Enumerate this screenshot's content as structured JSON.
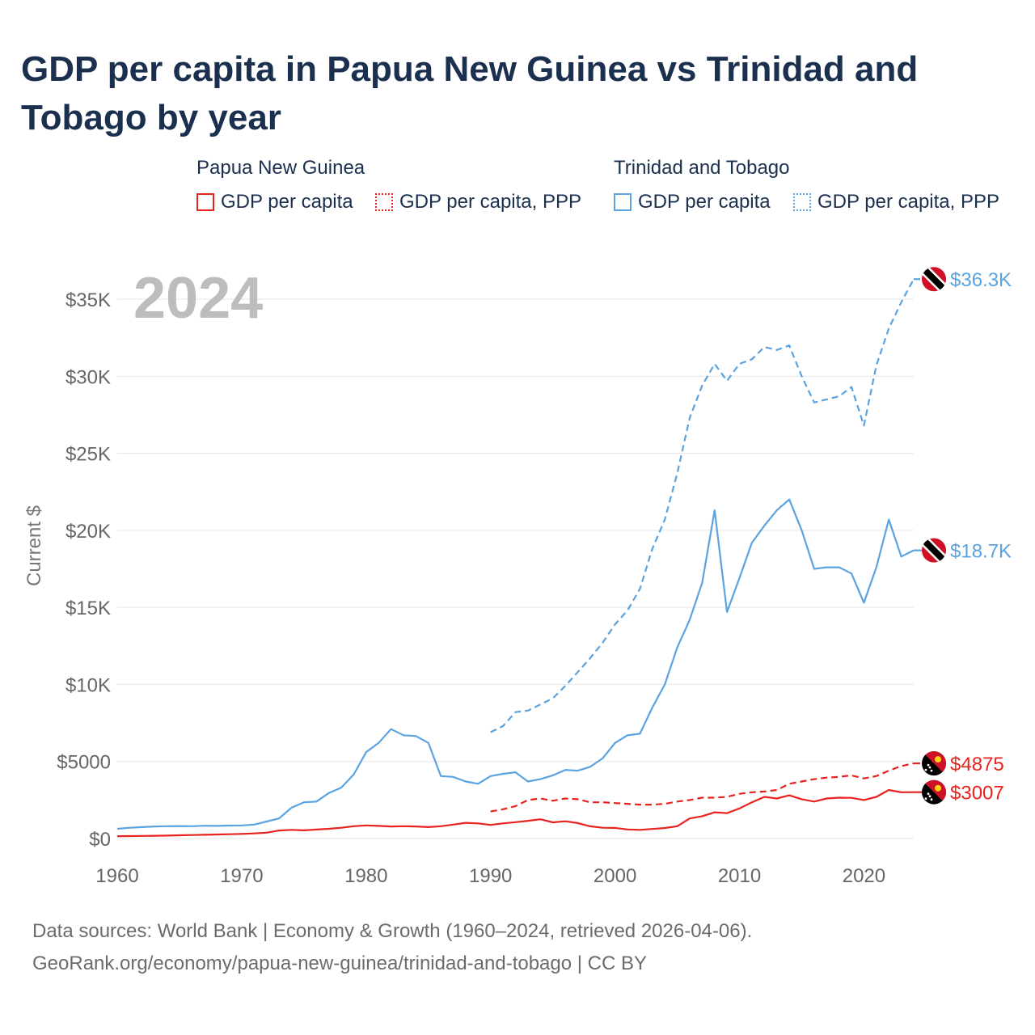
{
  "title": "GDP per capita in Papua New Guinea vs Trinidad and Tobago by year",
  "legend": {
    "groups": [
      {
        "country": "Papua New Guinea",
        "items": [
          "GDP per capita",
          "GDP per capita, PPP"
        ]
      },
      {
        "country": "Trinidad and Tobago",
        "items": [
          "GDP per capita",
          "GDP per capita, PPP"
        ]
      }
    ]
  },
  "footer": {
    "line1": "Data sources: World Bank | Economy & Growth (1960–2024, retrieved 2026-04-06).",
    "line2": "GeoRank.org/economy/papua-new-guinea/trinidad-and-tobago | CC BY"
  },
  "colors": {
    "png": "#e8231e",
    "tt": "#5aa2e0",
    "title": "#1b2f4e",
    "year": "#bdbdbd",
    "grid": "#e6e6e6",
    "axis_text": "#666666"
  },
  "chart_data": {
    "type": "line",
    "title": "GDP per capita in Papua New Guinea vs Trinidad and Tobago by year",
    "year_label": "2024",
    "ylabel": "Current $",
    "xlabel": "",
    "xlim": [
      1960,
      2024
    ],
    "ylim": [
      0,
      37000
    ],
    "xticks": [
      1960,
      1970,
      1980,
      1990,
      2000,
      2010,
      2020
    ],
    "yticks": [
      0,
      5000,
      10000,
      15000,
      20000,
      25000,
      30000,
      35000
    ],
    "ytick_labels": [
      "$0",
      "$5000",
      "$10K",
      "$15K",
      "$20K",
      "$25K",
      "$30K",
      "$35K"
    ],
    "grid": true,
    "series": [
      {
        "name": "Papua New Guinea — GDP per capita",
        "country": "Papua New Guinea",
        "color": "#e8231e",
        "dash": "solid",
        "end_label": "$3007",
        "flag": "papua-new-guinea",
        "points": [
          [
            1960,
            150
          ],
          [
            1961,
            160
          ],
          [
            1962,
            170
          ],
          [
            1963,
            180
          ],
          [
            1964,
            190
          ],
          [
            1965,
            210
          ],
          [
            1966,
            225
          ],
          [
            1967,
            240
          ],
          [
            1968,
            260
          ],
          [
            1969,
            280
          ],
          [
            1970,
            300
          ],
          [
            1971,
            330
          ],
          [
            1972,
            380
          ],
          [
            1973,
            520
          ],
          [
            1974,
            560
          ],
          [
            1975,
            530
          ],
          [
            1976,
            580
          ],
          [
            1977,
            630
          ],
          [
            1978,
            700
          ],
          [
            1979,
            800
          ],
          [
            1980,
            850
          ],
          [
            1981,
            820
          ],
          [
            1982,
            780
          ],
          [
            1983,
            800
          ],
          [
            1984,
            780
          ],
          [
            1985,
            740
          ],
          [
            1986,
            800
          ],
          [
            1987,
            900
          ],
          [
            1988,
            1020
          ],
          [
            1989,
            980
          ],
          [
            1990,
            880
          ],
          [
            1991,
            980
          ],
          [
            1992,
            1060
          ],
          [
            1993,
            1150
          ],
          [
            1994,
            1250
          ],
          [
            1995,
            1050
          ],
          [
            1996,
            1120
          ],
          [
            1997,
            1000
          ],
          [
            1998,
            790
          ],
          [
            1999,
            700
          ],
          [
            2000,
            690
          ],
          [
            2001,
            590
          ],
          [
            2002,
            560
          ],
          [
            2003,
            620
          ],
          [
            2004,
            680
          ],
          [
            2005,
            800
          ],
          [
            2006,
            1300
          ],
          [
            2007,
            1450
          ],
          [
            2008,
            1700
          ],
          [
            2009,
            1650
          ],
          [
            2010,
            1950
          ],
          [
            2011,
            2350
          ],
          [
            2012,
            2700
          ],
          [
            2013,
            2600
          ],
          [
            2014,
            2800
          ],
          [
            2015,
            2550
          ],
          [
            2016,
            2400
          ],
          [
            2017,
            2600
          ],
          [
            2018,
            2650
          ],
          [
            2019,
            2640
          ],
          [
            2020,
            2500
          ],
          [
            2021,
            2700
          ],
          [
            2022,
            3150
          ],
          [
            2023,
            3000
          ],
          [
            2024,
            3007
          ]
        ]
      },
      {
        "name": "Papua New Guinea — GDP per capita, PPP",
        "country": "Papua New Guinea",
        "color": "#e8231e",
        "dash": "dashed",
        "end_label": "$4875",
        "flag": "papua-new-guinea",
        "points": [
          [
            1990,
            1750
          ],
          [
            1991,
            1900
          ],
          [
            1992,
            2100
          ],
          [
            1993,
            2500
          ],
          [
            1994,
            2600
          ],
          [
            1995,
            2450
          ],
          [
            1996,
            2600
          ],
          [
            1997,
            2550
          ],
          [
            1998,
            2350
          ],
          [
            1999,
            2350
          ],
          [
            2000,
            2300
          ],
          [
            2001,
            2250
          ],
          [
            2002,
            2200
          ],
          [
            2003,
            2200
          ],
          [
            2004,
            2250
          ],
          [
            2005,
            2400
          ],
          [
            2006,
            2500
          ],
          [
            2007,
            2650
          ],
          [
            2008,
            2650
          ],
          [
            2009,
            2700
          ],
          [
            2010,
            2900
          ],
          [
            2011,
            3000
          ],
          [
            2012,
            3050
          ],
          [
            2013,
            3150
          ],
          [
            2014,
            3550
          ],
          [
            2015,
            3700
          ],
          [
            2016,
            3850
          ],
          [
            2017,
            3950
          ],
          [
            2018,
            4000
          ],
          [
            2019,
            4100
          ],
          [
            2020,
            3900
          ],
          [
            2021,
            4050
          ],
          [
            2022,
            4400
          ],
          [
            2023,
            4700
          ],
          [
            2024,
            4875
          ]
        ]
      },
      {
        "name": "Trinidad and Tobago — GDP per capita",
        "country": "Trinidad and Tobago",
        "color": "#5aa2e0",
        "dash": "solid",
        "end_label": "$18.7K",
        "flag": "trinidad-and-tobago",
        "points": [
          [
            1960,
            630
          ],
          [
            1961,
            700
          ],
          [
            1962,
            740
          ],
          [
            1963,
            780
          ],
          [
            1964,
            800
          ],
          [
            1965,
            810
          ],
          [
            1966,
            800
          ],
          [
            1967,
            830
          ],
          [
            1968,
            820
          ],
          [
            1969,
            840
          ],
          [
            1970,
            850
          ],
          [
            1971,
            900
          ],
          [
            1972,
            1100
          ],
          [
            1973,
            1300
          ],
          [
            1974,
            2000
          ],
          [
            1975,
            2350
          ],
          [
            1976,
            2400
          ],
          [
            1977,
            2950
          ],
          [
            1978,
            3300
          ],
          [
            1979,
            4150
          ],
          [
            1980,
            5600
          ],
          [
            1981,
            6200
          ],
          [
            1982,
            7100
          ],
          [
            1983,
            6700
          ],
          [
            1984,
            6650
          ],
          [
            1985,
            6200
          ],
          [
            1986,
            4050
          ],
          [
            1987,
            4000
          ],
          [
            1988,
            3700
          ],
          [
            1989,
            3550
          ],
          [
            1990,
            4050
          ],
          [
            1991,
            4200
          ],
          [
            1992,
            4300
          ],
          [
            1993,
            3700
          ],
          [
            1994,
            3850
          ],
          [
            1995,
            4100
          ],
          [
            1996,
            4450
          ],
          [
            1997,
            4400
          ],
          [
            1998,
            4650
          ],
          [
            1999,
            5200
          ],
          [
            2000,
            6200
          ],
          [
            2001,
            6700
          ],
          [
            2002,
            6800
          ],
          [
            2003,
            8500
          ],
          [
            2004,
            10000
          ],
          [
            2005,
            12400
          ],
          [
            2006,
            14200
          ],
          [
            2007,
            16600
          ],
          [
            2008,
            21300
          ],
          [
            2009,
            14700
          ],
          [
            2010,
            16900
          ],
          [
            2011,
            19200
          ],
          [
            2012,
            20300
          ],
          [
            2013,
            21300
          ],
          [
            2014,
            22000
          ],
          [
            2015,
            20000
          ],
          [
            2016,
            17500
          ],
          [
            2017,
            17600
          ],
          [
            2018,
            17600
          ],
          [
            2019,
            17200
          ],
          [
            2020,
            15300
          ],
          [
            2021,
            17600
          ],
          [
            2022,
            20700
          ],
          [
            2023,
            18300
          ],
          [
            2024,
            18700
          ]
        ]
      },
      {
        "name": "Trinidad and Tobago — GDP per capita, PPP",
        "country": "Trinidad and Tobago",
        "color": "#5aa2e0",
        "dash": "dashed",
        "end_label": "$36.3K",
        "flag": "trinidad-and-tobago",
        "points": [
          [
            1990,
            6900
          ],
          [
            1991,
            7300
          ],
          [
            1992,
            8200
          ],
          [
            1993,
            8300
          ],
          [
            1994,
            8700
          ],
          [
            1995,
            9100
          ],
          [
            1996,
            9900
          ],
          [
            1997,
            10800
          ],
          [
            1998,
            11700
          ],
          [
            1999,
            12700
          ],
          [
            2000,
            13900
          ],
          [
            2001,
            14800
          ],
          [
            2002,
            16200
          ],
          [
            2003,
            18800
          ],
          [
            2004,
            20700
          ],
          [
            2005,
            23700
          ],
          [
            2006,
            27300
          ],
          [
            2007,
            29400
          ],
          [
            2008,
            30800
          ],
          [
            2009,
            29700
          ],
          [
            2010,
            30800
          ],
          [
            2011,
            31100
          ],
          [
            2012,
            31900
          ],
          [
            2013,
            31700
          ],
          [
            2014,
            32000
          ],
          [
            2015,
            30000
          ],
          [
            2016,
            28300
          ],
          [
            2017,
            28500
          ],
          [
            2018,
            28700
          ],
          [
            2019,
            29300
          ],
          [
            2020,
            26800
          ],
          [
            2021,
            30700
          ],
          [
            2022,
            33100
          ],
          [
            2023,
            34800
          ],
          [
            2024,
            36300
          ]
        ]
      }
    ]
  }
}
